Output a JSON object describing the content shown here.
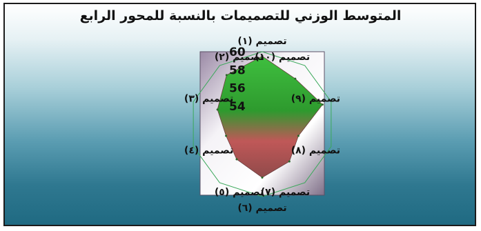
{
  "chart_data": {
    "type": "radar",
    "title": "المتوسط الوزني للتصميمات بالنسبة للمحور الرابع",
    "categories": [
      "تصميم (١)",
      "تصميم (٢)",
      "تصميم (٣)",
      "تصميم (٤)",
      "تصميم (٥)",
      "تصميم (٦)",
      "تصميم (٧)",
      "تصميم (٨)",
      "تصميم (٩)",
      "تصميم (١٠)"
    ],
    "values": [
      59.5,
      58.7,
      57.2,
      56.2,
      56.8,
      57.9,
      57.1,
      56.2,
      59.0,
      58.2
    ],
    "rlim": [
      52,
      60
    ],
    "ticks": [
      "54",
      "56",
      "58",
      "60"
    ],
    "tick_values": [
      54,
      56,
      58,
      60
    ],
    "colors": {
      "fill_top": "#2fa32f",
      "fill_bottom": "#b85a5a",
      "grid": "#3aa85a",
      "plot_back_start": "#f4f1f6",
      "plot_back_end": "#8a7a92"
    }
  }
}
